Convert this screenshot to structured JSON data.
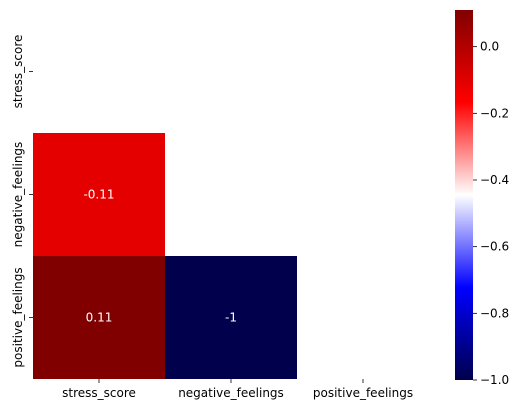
{
  "chart_data": {
    "type": "heatmap",
    "title": "",
    "xlabel": "",
    "ylabel": "",
    "x_labels": [
      "stress_score",
      "negative_feelings",
      "positive_feelings"
    ],
    "y_labels": [
      "stress_score",
      "negative_feelings",
      "positive_feelings"
    ],
    "mask": "upper-triangle including diagonal",
    "cells": [
      {
        "row": 1,
        "col": 0,
        "value": -0.11,
        "label": "-0.11"
      },
      {
        "row": 2,
        "col": 0,
        "value": 0.11,
        "label": "0.11"
      },
      {
        "row": 2,
        "col": 1,
        "value": -1,
        "label": "-1"
      }
    ],
    "colormap": "seismic",
    "colorbar": {
      "vmin": -1.0,
      "vmax": 0.11,
      "ticks": [
        {
          "value": 0.0,
          "label": "0.0"
        },
        {
          "value": -0.2,
          "label": "−0.2"
        },
        {
          "value": -0.4,
          "label": "−0.4"
        },
        {
          "value": -0.6,
          "label": "−0.6"
        },
        {
          "value": -0.8,
          "label": "−0.8"
        },
        {
          "value": -1.0,
          "label": "−1.0"
        }
      ]
    },
    "grid": false,
    "legend": "colorbar right"
  }
}
